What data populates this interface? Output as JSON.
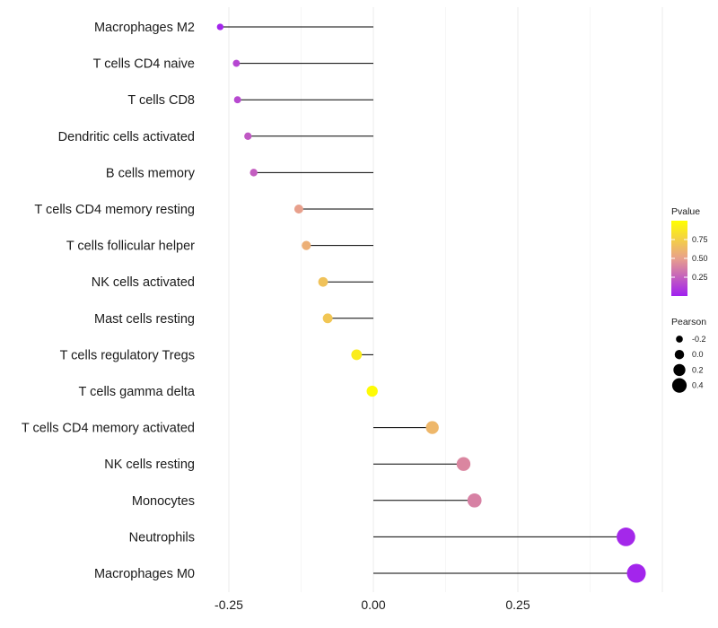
{
  "chart_data": {
    "type": "lollipop",
    "title": "",
    "xlabel": "",
    "ylabel": "",
    "xlim": [
      -0.3,
      0.6
    ],
    "x_ticks": [
      -0.25,
      0.0,
      0.25
    ],
    "x_tick_labels": [
      "-0.25",
      "0.00",
      "0.25"
    ],
    "categories": [
      "Macrophages M2",
      "T cells CD4 naive",
      "T cells CD8",
      "Dendritic cells activated",
      "B cells memory",
      "T cells CD4 memory resting",
      "T cells follicular helper",
      "NK cells activated",
      "Mast cells resting",
      "T cells regulatory  Tregs",
      "T cells gamma delta",
      "T cells CD4 memory activated",
      "NK cells resting",
      "Monocytes",
      "Neutrophils",
      "Macrophages M0"
    ],
    "pearson": [
      -0.265,
      -0.237,
      -0.235,
      -0.217,
      -0.207,
      -0.129,
      -0.116,
      -0.087,
      -0.079,
      -0.029,
      -0.002,
      0.102,
      0.156,
      0.175,
      0.437,
      0.455
    ],
    "pvalue": [
      0.02,
      0.15,
      0.16,
      0.22,
      0.24,
      0.5,
      0.58,
      0.68,
      0.7,
      0.9,
      0.98,
      0.62,
      0.4,
      0.38,
      0.03,
      0.02
    ],
    "legend": {
      "placement": "right",
      "color_title": "Pvalue",
      "color_ticks": [
        0.25,
        0.5,
        0.75
      ],
      "color_tick_labels": [
        "0.25",
        "0.50",
        "0.75"
      ],
      "color_range": [
        0.0,
        1.0
      ],
      "color_low": "#a020f0",
      "color_mid": "#e8a08c",
      "color_high": "#ffff00",
      "size_title": "Pearson",
      "size_ticks": [
        -0.2,
        0.0,
        0.2,
        0.4
      ],
      "size_tick_labels": [
        "-0.2",
        "0.0",
        "0.2",
        "0.4"
      ]
    },
    "grid": true
  }
}
